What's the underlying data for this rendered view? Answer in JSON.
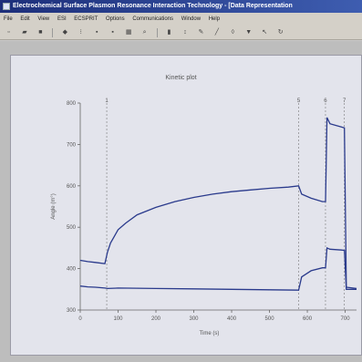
{
  "window": {
    "title": "Electrochemical Surface Plasmon Resonance Interaction Technology - [Data Representation"
  },
  "menu": {
    "items": [
      "File",
      "Edit",
      "View",
      "ESI",
      "ECSPRIT",
      "Options",
      "Communications",
      "Window",
      "Help"
    ]
  },
  "toolbar": {
    "icons": [
      "new-icon",
      "open-icon",
      "save-icon",
      "print-icon",
      "cut-icon",
      "copy-icon",
      "paste-icon",
      "grid-icon",
      "zoom-icon",
      "bar-icon",
      "marker-icon",
      "pen-icon",
      "line-icon",
      "fill-icon",
      "color-icon",
      "arrow-icon",
      "refresh-icon"
    ]
  },
  "plot": {
    "title": "Kinetic plot"
  },
  "chart_data": {
    "type": "line",
    "title": "Kinetic plot",
    "xlabel": "Time (s)",
    "ylabel": "Angle (m°)",
    "xlim": [
      0,
      730
    ],
    "ylim": [
      300,
      800
    ],
    "xticks": [
      0,
      100,
      200,
      300,
      400,
      500,
      600,
      700
    ],
    "yticks": [
      300,
      400,
      500,
      600,
      700,
      800
    ],
    "grid": false,
    "markers": [
      {
        "label": "1",
        "x": 70
      },
      {
        "label": "5",
        "x": 577
      },
      {
        "label": "6",
        "x": 648
      },
      {
        "label": "7",
        "x": 698
      }
    ],
    "series": [
      {
        "color": "#2a3a8c",
        "points": [
          [
            0,
            420
          ],
          [
            20,
            417
          ],
          [
            40,
            415
          ],
          [
            65,
            412
          ],
          [
            72,
            440
          ],
          [
            80,
            462
          ],
          [
            90,
            478
          ],
          [
            100,
            494
          ],
          [
            120,
            510
          ],
          [
            150,
            530
          ],
          [
            200,
            548
          ],
          [
            250,
            562
          ],
          [
            300,
            572
          ],
          [
            350,
            580
          ],
          [
            400,
            586
          ],
          [
            450,
            590
          ],
          [
            500,
            594
          ],
          [
            550,
            597
          ],
          [
            577,
            600
          ],
          [
            585,
            580
          ],
          [
            610,
            570
          ],
          [
            640,
            562
          ],
          [
            648,
            562
          ],
          [
            652,
            765
          ],
          [
            660,
            750
          ],
          [
            690,
            742
          ],
          [
            698,
            740
          ],
          [
            703,
            355
          ],
          [
            730,
            352
          ]
        ]
      },
      {
        "color": "#2a3a8c",
        "points": [
          [
            0,
            358
          ],
          [
            20,
            356
          ],
          [
            40,
            355
          ],
          [
            65,
            353
          ],
          [
            72,
            352
          ],
          [
            100,
            353
          ],
          [
            200,
            352
          ],
          [
            300,
            351
          ],
          [
            400,
            350
          ],
          [
            500,
            349
          ],
          [
            577,
            348
          ],
          [
            585,
            380
          ],
          [
            610,
            395
          ],
          [
            640,
            402
          ],
          [
            648,
            402
          ],
          [
            652,
            450
          ],
          [
            660,
            447
          ],
          [
            690,
            445
          ],
          [
            698,
            444
          ],
          [
            703,
            350
          ],
          [
            730,
            350
          ]
        ]
      }
    ]
  }
}
